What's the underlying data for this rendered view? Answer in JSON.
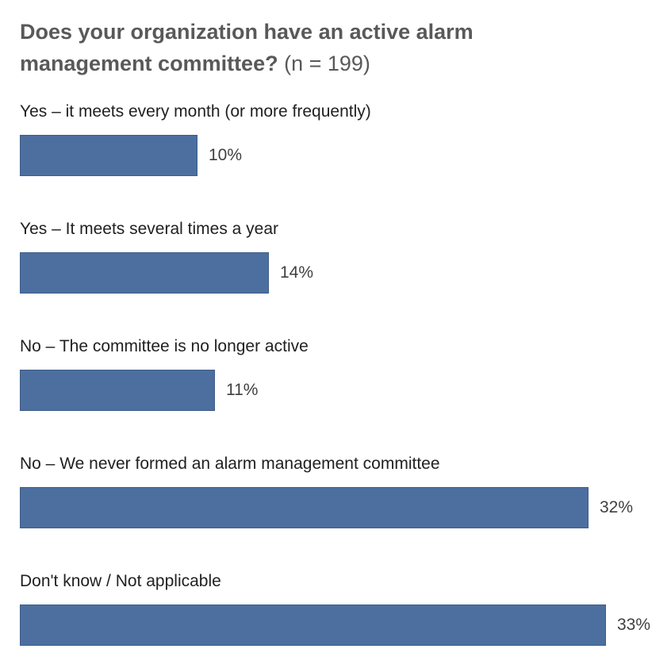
{
  "header": {
    "title_main": "Does your organization have an active alarm management committee?",
    "title_suffix": "(n = 199)"
  },
  "chart_data": {
    "type": "bar",
    "orientation": "horizontal",
    "title": "Does your organization have an active alarm management committee? (n = 199)",
    "sample_size_text": "n = 199",
    "categories": [
      "Yes – it meets every month (or more frequently)",
      "Yes – It meets several times a year",
      "No – The committee is no longer active",
      "No – We never formed an alarm management committee",
      "Don't know / Not applicable"
    ],
    "values": [
      10,
      14,
      11,
      32,
      33
    ],
    "value_labels": [
      "10%",
      "14%",
      "11%",
      "32%",
      "33%"
    ],
    "value_suffix": "%",
    "xlabel": "",
    "ylabel": "",
    "xlim": [
      0,
      33
    ],
    "grid": false,
    "legend": false,
    "data_labels": true,
    "bar_color": "#4C6F9F",
    "bar_border_color": "#3E5C87"
  },
  "style": {
    "background": "#FFFFFF",
    "title_color": "#595959",
    "category_label_color": "#212121",
    "value_label_color": "#3F3F3F"
  }
}
